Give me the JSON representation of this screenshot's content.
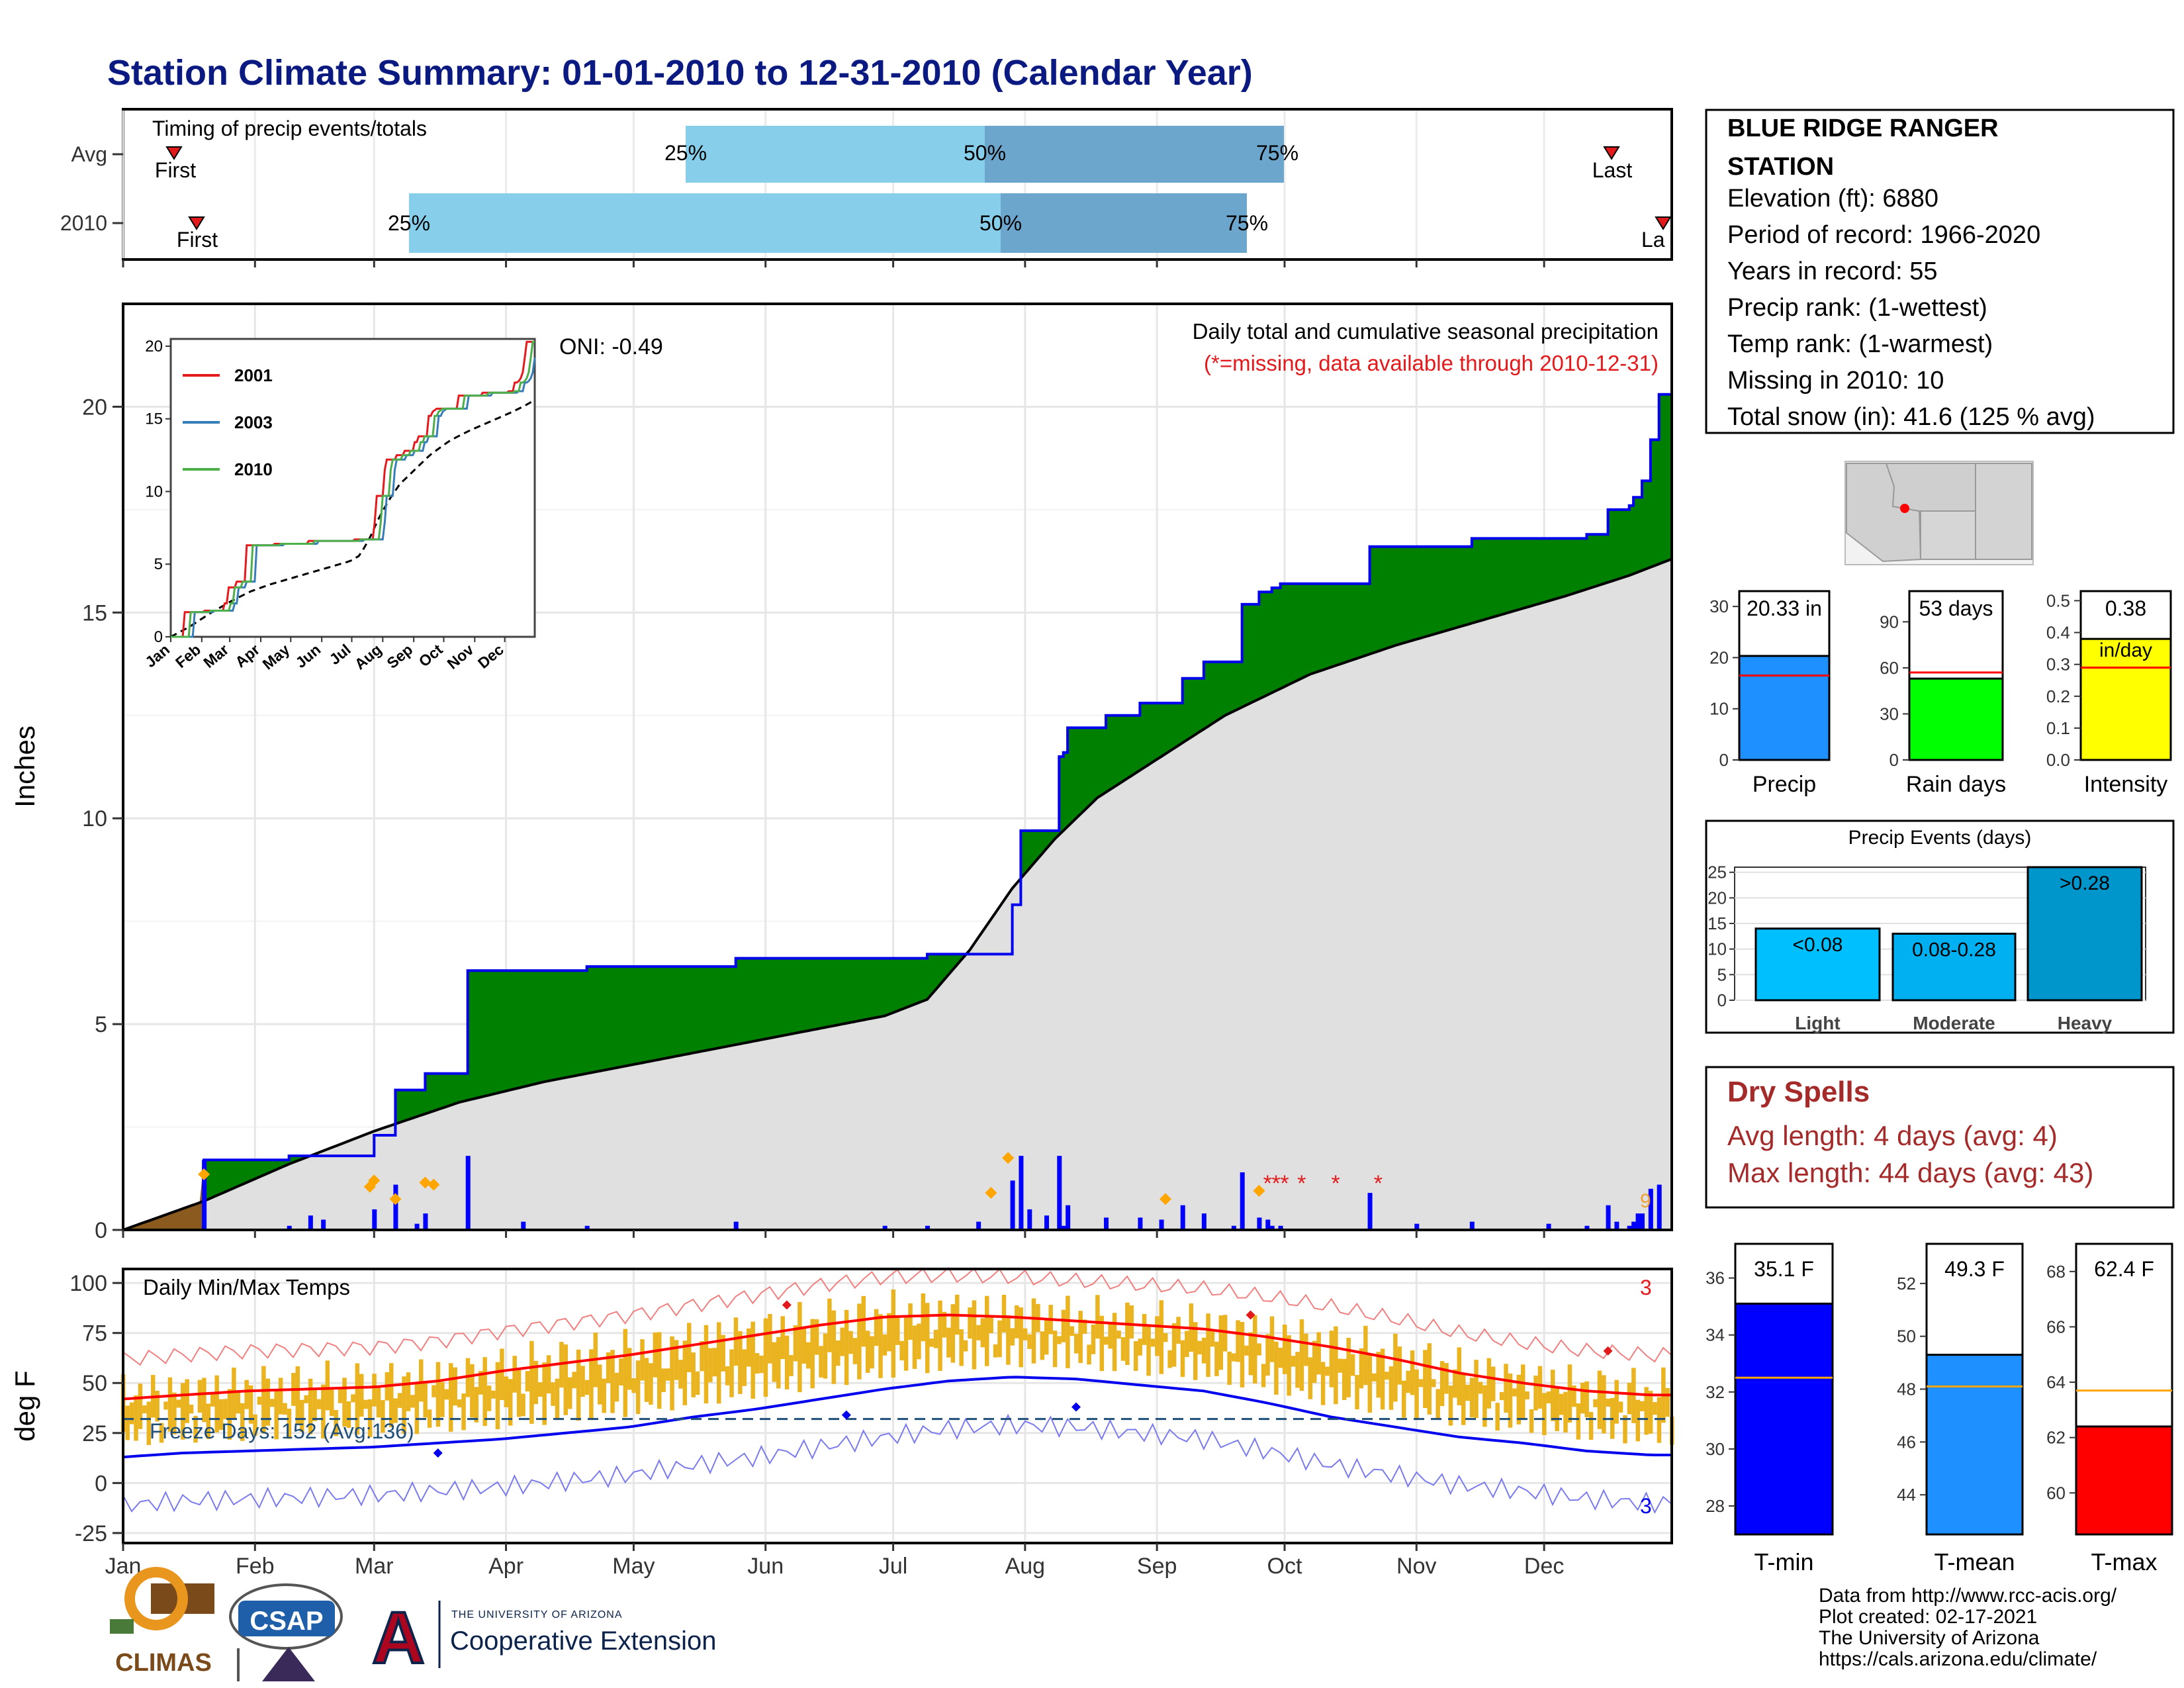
{
  "title": "Station Climate Summary: 01-01-2010 to 12-31-2010 (Calendar Year)",
  "timing": {
    "label": "Timing of precip events/totals",
    "rows": [
      {
        "name": "Avg",
        "first_label": "First",
        "last_label": "Last",
        "q25": "25%",
        "q50": "50%",
        "q75": "75%"
      },
      {
        "name": "2010",
        "first_label": "First",
        "last_label": "La",
        "q25": "25%",
        "q50": "50%",
        "q75": "75%"
      }
    ]
  },
  "station": {
    "name_line1": "BLUE RIDGE RANGER",
    "name_line2": "STATION",
    "lines": [
      "Elevation (ft): 6880",
      "Period of record: 1966-2020",
      "Years in record: 55",
      "Precip rank:  (1-wettest)",
      "Temp rank:  (1-warmest)",
      "Missing in 2010: 10",
      "Total snow (in): 41.6 (125 % avg)"
    ]
  },
  "precip_panel": {
    "ylabel": "Inches",
    "oni": "ONI: -0.49",
    "note1": "Daily total and cumulative seasonal precipitation",
    "note2": "(*=missing, data available through 2010-12-31)",
    "right_count": "9"
  },
  "inset": {
    "legend": [
      "2001",
      "2003",
      "2010"
    ],
    "colors": [
      "#e41a1c",
      "#377eb8",
      "#4daf4a"
    ],
    "months": [
      "Jan",
      "Feb",
      "Mar",
      "Apr",
      "May",
      "Jun",
      "Jul",
      "Aug",
      "Sep",
      "Oct",
      "Nov",
      "Dec"
    ],
    "yticks": [
      "0",
      "5",
      "10",
      "15",
      "20"
    ]
  },
  "temp_panel": {
    "ylabel": "deg F",
    "label": "Daily Min/Max Temps",
    "freeze": "Freeze Days: 152 (Avg:136)",
    "count_top": "3",
    "count_bottom": "3"
  },
  "months": [
    "Jan",
    "Feb",
    "Mar",
    "Apr",
    "May",
    "Jun",
    "Jul",
    "Aug",
    "Sep",
    "Oct",
    "Nov",
    "Dec"
  ],
  "bars1": [
    {
      "label": "Precip",
      "value_text": "20.33 in",
      "yticks": [
        "0",
        "10",
        "20",
        "30"
      ]
    },
    {
      "label": "Rain days",
      "value_text": "53 days",
      "yticks": [
        "0",
        "30",
        "60",
        "90"
      ]
    },
    {
      "label": "Intensity",
      "value_text": "0.38",
      "value_text2": "in/day",
      "yticks": [
        "0.0",
        "0.1",
        "0.2",
        "0.3",
        "0.4",
        "0.5"
      ]
    }
  ],
  "events": {
    "title": "Precip Events (days)",
    "categories": [
      "Light",
      "Moderate",
      "Heavy"
    ],
    "labels": [
      "<0.08",
      "0.08-0.28",
      ">0.28"
    ],
    "yticks": [
      "0",
      "5",
      "10",
      "15",
      "20",
      "25"
    ]
  },
  "dry": {
    "title": "Dry Spells",
    "avg": "Avg length: 4 days (avg: 4)",
    "max": "Max length: 44 days (avg: 43)"
  },
  "temp_bars": [
    {
      "label": "T-min",
      "value_text": "35.1 F",
      "yticks": [
        "28",
        "30",
        "32",
        "34",
        "36"
      ]
    },
    {
      "label": "T-mean",
      "value_text": "49.3 F",
      "yticks": [
        "44",
        "46",
        "48",
        "50",
        "52"
      ]
    },
    {
      "label": "T-max",
      "value_text": "62.4 F",
      "yticks": [
        "60",
        "62",
        "64",
        "66",
        "68"
      ]
    }
  ],
  "footer": {
    "lines": [
      "Data from http://www.rcc-acis.org/",
      "Plot created: 02-17-2021",
      "The University of Arizona",
      "https://cals.arizona.edu/climate/"
    ],
    "climas": "CLIMAS",
    "csap": "CSAP",
    "ua_small": "THE UNIVERSITY OF ARIZONA",
    "ua_big": "Cooperative Extension"
  },
  "chart_data": [
    {
      "type": "area",
      "title": "Daily total and cumulative seasonal precipitation",
      "ylabel": "Inches",
      "ylim": [
        0,
        22.5
      ],
      "x_unit": "day of year",
      "series": [
        {
          "name": "2010",
          "x": [
            1,
            20,
            40,
            60,
            65,
            72,
            82,
            110,
            145,
            190,
            210,
            212,
            221,
            222,
            223,
            232,
            240,
            250,
            255,
            264,
            268,
            271,
            273,
            294,
            318,
            345,
            350,
            355,
            356,
            358,
            360,
            361,
            362,
            365
          ],
          "y": [
            0.0,
            1.7,
            1.8,
            2.3,
            3.4,
            3.8,
            6.3,
            6.4,
            6.6,
            6.7,
            7.9,
            9.7,
            11.5,
            11.6,
            12.2,
            12.5,
            12.8,
            13.4,
            13.8,
            15.2,
            15.5,
            15.6,
            15.7,
            16.6,
            16.8,
            16.9,
            17.5,
            17.6,
            17.8,
            18.2,
            19.2,
            19.2,
            20.3,
            20.3
          ]
        },
        {
          "name": "Average",
          "x": [
            1,
            20,
            40,
            60,
            80,
            100,
            120,
            140,
            160,
            180,
            190,
            200,
            210,
            220,
            230,
            245,
            260,
            280,
            300,
            320,
            340,
            355,
            365
          ],
          "y": [
            0.0,
            0.7,
            1.6,
            2.4,
            3.1,
            3.6,
            4.0,
            4.4,
            4.8,
            5.2,
            5.6,
            6.8,
            8.3,
            9.5,
            10.5,
            11.5,
            12.5,
            13.5,
            14.2,
            14.8,
            15.4,
            15.9,
            16.3
          ]
        }
      ]
    },
    {
      "type": "line",
      "title": "Daily Min/Max Temps",
      "ylabel": "deg F",
      "ylim": [
        -25,
        100
      ],
      "freeze_line": 32,
      "series": [
        {
          "name": "Avg max",
          "x": [
            1,
            15,
            30,
            45,
            60,
            75,
            90,
            105,
            120,
            135,
            150,
            165,
            180,
            195,
            210,
            225,
            240,
            255,
            270,
            285,
            300,
            315,
            330,
            345,
            360,
            365
          ],
          "y": [
            42,
            44,
            46,
            47,
            48,
            51,
            56,
            60,
            64,
            69,
            74,
            79,
            83,
            84,
            83,
            81,
            79,
            77,
            73,
            68,
            62,
            55,
            50,
            46,
            44,
            44
          ]
        },
        {
          "name": "Avg min",
          "x": [
            1,
            15,
            30,
            45,
            60,
            75,
            90,
            105,
            120,
            135,
            150,
            165,
            180,
            195,
            210,
            225,
            240,
            255,
            270,
            285,
            300,
            315,
            330,
            345,
            360,
            365
          ],
          "y": [
            13,
            15,
            16,
            17,
            18,
            20,
            22,
            25,
            28,
            33,
            37,
            42,
            47,
            51,
            53,
            52,
            49,
            46,
            40,
            33,
            28,
            23,
            20,
            16,
            14,
            14
          ]
        }
      ]
    },
    {
      "type": "bar",
      "title": "Precip Events (days)",
      "categories": [
        "Light",
        "Moderate",
        "Heavy"
      ],
      "values": [
        14,
        13,
        26
      ],
      "ylim": [
        0,
        26
      ]
    },
    {
      "type": "bar",
      "categories": [
        "Precip",
        "Rain days",
        "Intensity"
      ],
      "values": [
        20.33,
        53,
        0.38
      ],
      "averages": [
        16.5,
        57,
        0.29
      ]
    },
    {
      "type": "bar",
      "categories": [
        "T-min",
        "T-mean",
        "T-max"
      ],
      "values": [
        35.1,
        49.3,
        62.4
      ],
      "averages": [
        32.5,
        48.1,
        63.7
      ]
    }
  ]
}
